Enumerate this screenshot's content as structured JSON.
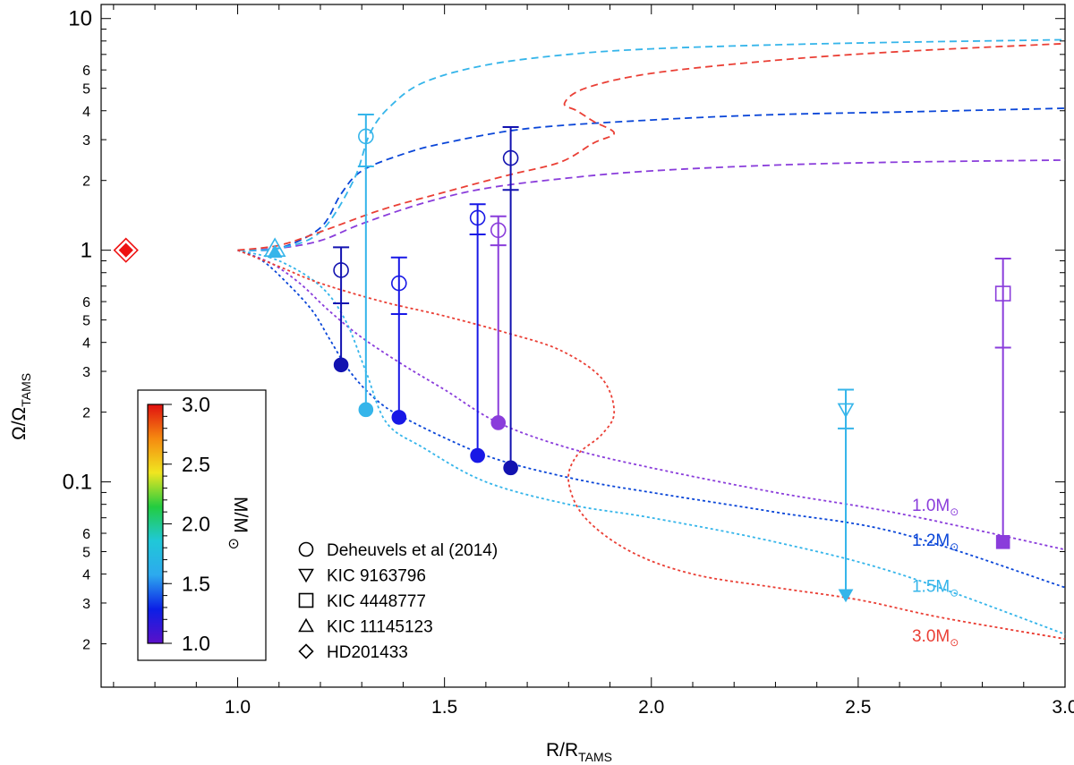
{
  "chart_data": {
    "type": "scatter",
    "xlabel": "R/R",
    "xlabel_sub": "TAMS",
    "ylabel": "Ω/Ω",
    "ylabel_sub": "TAMS",
    "xlim": [
      0.67,
      3.0
    ],
    "ylim": [
      0.013,
      11.5
    ],
    "yscale": "log",
    "x_ticks": [
      1.0,
      1.5,
      2.0,
      2.5,
      3.0
    ],
    "x_tick_labels": [
      "1.0",
      "1.5",
      "2.0",
      "2.5",
      "3.0"
    ],
    "y_labeled_ticks": [
      {
        "value": 10,
        "label": "10",
        "major": true
      },
      {
        "value": 6,
        "label": "6",
        "major": false
      },
      {
        "value": 5,
        "label": "5",
        "major": false
      },
      {
        "value": 4,
        "label": "4",
        "major": false
      },
      {
        "value": 3,
        "label": "3",
        "major": false
      },
      {
        "value": 2,
        "label": "2",
        "major": false
      },
      {
        "value": 1,
        "label": "1",
        "major": true
      },
      {
        "value": 0.6,
        "label": "6",
        "major": false
      },
      {
        "value": 0.5,
        "label": "5",
        "major": false
      },
      {
        "value": 0.4,
        "label": "4",
        "major": false
      },
      {
        "value": 0.3,
        "label": "3",
        "major": false
      },
      {
        "value": 0.2,
        "label": "2",
        "major": false
      },
      {
        "value": 0.1,
        "label": "0.1",
        "major": true
      },
      {
        "value": 0.06,
        "label": "6",
        "major": false
      },
      {
        "value": 0.05,
        "label": "5",
        "major": false
      },
      {
        "value": 0.04,
        "label": "4",
        "major": false
      },
      {
        "value": 0.03,
        "label": "3",
        "major": false
      },
      {
        "value": 0.02,
        "label": "2",
        "major": false
      }
    ],
    "colors": {
      "m10": "#8a3ddb",
      "m12": "#0a46d8",
      "m15": "#35b5ea",
      "m30": "#ea3f35",
      "obs12": "#1818e6",
      "obs11": "#1212b0",
      "hd": "#ee1111"
    },
    "model_tracks": [
      {
        "name": "1.0M",
        "label": "1.0M",
        "color_key": "m10",
        "kind": "core",
        "label_pos": [
          2.63,
          0.075
        ],
        "points": [
          [
            1.0,
            1.0
          ],
          [
            1.08,
            0.88
          ],
          [
            1.15,
            0.72
          ],
          [
            1.22,
            0.55
          ],
          [
            1.3,
            0.42
          ],
          [
            1.4,
            0.32
          ],
          [
            1.5,
            0.25
          ],
          [
            1.63,
            0.18
          ],
          [
            1.8,
            0.14
          ],
          [
            2.0,
            0.115
          ],
          [
            2.3,
            0.09
          ],
          [
            2.6,
            0.073
          ],
          [
            3.0,
            0.051
          ]
        ]
      },
      {
        "name": "1.0M env",
        "label": "",
        "color_key": "m10",
        "kind": "envelope",
        "points": [
          [
            1.0,
            1.0
          ],
          [
            1.1,
            1.02
          ],
          [
            1.2,
            1.1
          ],
          [
            1.3,
            1.3
          ],
          [
            1.45,
            1.6
          ],
          [
            1.6,
            1.85
          ],
          [
            1.8,
            2.05
          ],
          [
            2.0,
            2.2
          ],
          [
            2.3,
            2.33
          ],
          [
            2.6,
            2.4
          ],
          [
            3.0,
            2.45
          ]
        ]
      },
      {
        "name": "1.2M",
        "label": "1.2M",
        "color_key": "m12",
        "kind": "core",
        "label_pos": [
          2.63,
          0.053
        ],
        "points": [
          [
            1.0,
            1.0
          ],
          [
            1.06,
            0.9
          ],
          [
            1.12,
            0.72
          ],
          [
            1.18,
            0.55
          ],
          [
            1.22,
            0.42
          ],
          [
            1.26,
            0.32
          ],
          [
            1.3,
            0.26
          ],
          [
            1.35,
            0.215
          ],
          [
            1.4,
            0.19
          ],
          [
            1.5,
            0.155
          ],
          [
            1.6,
            0.13
          ],
          [
            1.7,
            0.115
          ],
          [
            1.85,
            0.1
          ],
          [
            2.0,
            0.09
          ],
          [
            2.3,
            0.074
          ],
          [
            2.6,
            0.06
          ],
          [
            3.0,
            0.035
          ]
        ]
      },
      {
        "name": "1.2M env",
        "label": "",
        "color_key": "m12",
        "kind": "envelope",
        "points": [
          [
            1.0,
            1.0
          ],
          [
            1.1,
            1.02
          ],
          [
            1.2,
            1.25
          ],
          [
            1.25,
            1.75
          ],
          [
            1.3,
            2.2
          ],
          [
            1.4,
            2.6
          ],
          [
            1.5,
            2.9
          ],
          [
            1.7,
            3.35
          ],
          [
            2.0,
            3.65
          ],
          [
            2.3,
            3.85
          ],
          [
            2.6,
            3.95
          ],
          [
            3.0,
            4.1
          ]
        ]
      },
      {
        "name": "1.5M",
        "label": "1.5M",
        "color_key": "m15",
        "kind": "core",
        "label_pos": [
          2.63,
          0.0335
        ],
        "points": [
          [
            1.0,
            1.0
          ],
          [
            1.1,
            0.9
          ],
          [
            1.2,
            0.7
          ],
          [
            1.26,
            0.5
          ],
          [
            1.31,
            0.3
          ],
          [
            1.36,
            0.18
          ],
          [
            1.45,
            0.14
          ],
          [
            1.6,
            0.1
          ],
          [
            1.8,
            0.08
          ],
          [
            2.0,
            0.07
          ],
          [
            2.3,
            0.055
          ],
          [
            2.6,
            0.04
          ],
          [
            3.0,
            0.022
          ]
        ]
      },
      {
        "name": "1.5M env",
        "label": "",
        "color_key": "m15",
        "kind": "envelope",
        "points": [
          [
            1.0,
            1.0
          ],
          [
            1.1,
            1.02
          ],
          [
            1.2,
            1.2
          ],
          [
            1.28,
            2.0
          ],
          [
            1.32,
            3.2
          ],
          [
            1.37,
            4.2
          ],
          [
            1.45,
            5.3
          ],
          [
            1.6,
            6.3
          ],
          [
            1.8,
            7.0
          ],
          [
            2.0,
            7.4
          ],
          [
            2.3,
            7.7
          ],
          [
            2.6,
            7.9
          ],
          [
            3.0,
            8.1
          ]
        ]
      },
      {
        "name": "3.0M",
        "label": "3.0M",
        "color_key": "m30",
        "kind": "core",
        "label_pos": [
          2.63,
          0.0205
        ],
        "points": [
          [
            1.0,
            1.0
          ],
          [
            1.1,
            0.85
          ],
          [
            1.2,
            0.72
          ],
          [
            1.35,
            0.6
          ],
          [
            1.5,
            0.52
          ],
          [
            1.65,
            0.44
          ],
          [
            1.78,
            0.37
          ],
          [
            1.88,
            0.28
          ],
          [
            1.91,
            0.2
          ],
          [
            1.88,
            0.16
          ],
          [
            1.82,
            0.13
          ],
          [
            1.8,
            0.1
          ],
          [
            1.84,
            0.07
          ],
          [
            1.95,
            0.05
          ],
          [
            2.1,
            0.04
          ],
          [
            2.3,
            0.035
          ],
          [
            2.5,
            0.031
          ],
          [
            2.7,
            0.026
          ],
          [
            3.0,
            0.021
          ]
        ]
      },
      {
        "name": "3.0M env",
        "label": "",
        "color_key": "m30",
        "kind": "envelope",
        "points": [
          [
            1.0,
            1.0
          ],
          [
            1.1,
            1.05
          ],
          [
            1.2,
            1.2
          ],
          [
            1.35,
            1.5
          ],
          [
            1.5,
            1.78
          ],
          [
            1.65,
            2.1
          ],
          [
            1.78,
            2.4
          ],
          [
            1.86,
            2.9
          ],
          [
            1.91,
            3.2
          ],
          [
            1.86,
            3.6
          ],
          [
            1.82,
            4.0
          ],
          [
            1.79,
            4.3
          ],
          [
            1.84,
            5.0
          ],
          [
            2.0,
            5.8
          ],
          [
            2.3,
            6.6
          ],
          [
            2.6,
            7.2
          ],
          [
            3.0,
            7.8
          ]
        ]
      }
    ],
    "observations": [
      {
        "name": "deheuvels-1",
        "x": 1.25,
        "marker": "circle",
        "color_key": "obs11",
        "env": 0.82,
        "env_err": [
          0.59,
          1.03
        ],
        "core": 0.32,
        "bar_from": 0.32,
        "bar_to": 1.03
      },
      {
        "name": "deheuvels-2",
        "x": 1.31,
        "marker": "circle",
        "color_key": "m15",
        "env": 3.1,
        "env_err": [
          2.3,
          3.85
        ],
        "core": 0.205,
        "bar_from": 0.205,
        "bar_to": 3.85
      },
      {
        "name": "deheuvels-3",
        "x": 1.39,
        "marker": "circle",
        "color_key": "obs12",
        "env": 0.72,
        "env_err": [
          0.53,
          0.93
        ],
        "core": 0.19,
        "bar_from": 0.19,
        "bar_to": 0.93
      },
      {
        "name": "deheuvels-4",
        "x": 1.58,
        "marker": "circle",
        "color_key": "obs12",
        "env": 1.38,
        "env_err": [
          1.17,
          1.58
        ],
        "core": 0.13,
        "bar_from": 0.13,
        "bar_to": 1.58
      },
      {
        "name": "deheuvels-5",
        "x": 1.63,
        "marker": "circle",
        "color_key": "m10",
        "env": 1.22,
        "env_err": [
          1.05,
          1.4
        ],
        "core": 0.18,
        "bar_from": 0.18,
        "bar_to": 1.4
      },
      {
        "name": "deheuvels-6",
        "x": 1.66,
        "marker": "circle",
        "color_key": "obs11",
        "env": 2.5,
        "env_err": [
          1.82,
          3.4
        ],
        "core": 0.115,
        "bar_from": 0.115,
        "bar_to": 3.4
      },
      {
        "name": "kic-9163796",
        "x": 2.47,
        "marker": "triangle-down",
        "color_key": "m15",
        "env": 0.205,
        "env_err": [
          0.17,
          0.25
        ],
        "core": 0.0325,
        "bar_from": 0.0325,
        "bar_to": 0.25
      },
      {
        "name": "kic-4448777",
        "x": 2.85,
        "marker": "square",
        "color_key": "m10",
        "env": 0.65,
        "env_err": [
          0.38,
          0.92
        ],
        "core": 0.055,
        "bar_from": 0.055,
        "bar_to": 0.92
      },
      {
        "name": "kic-11145123",
        "x": 1.09,
        "marker": "triangle-up",
        "color_key": "m15",
        "env": 1.02,
        "env_err": null,
        "core": 1.0,
        "bar_from": null,
        "bar_to": null
      },
      {
        "name": "hd201433",
        "x": 0.73,
        "marker": "diamond",
        "color_key": "hd",
        "env": 1.0,
        "env_err": null,
        "core": 1.0,
        "bar_from": null,
        "bar_to": null
      }
    ],
    "legend": [
      {
        "marker": "circle",
        "label": "Deheuvels et al (2014)"
      },
      {
        "marker": "triangle-down",
        "label": "KIC 9163796"
      },
      {
        "marker": "square",
        "label": "KIC 4448777"
      },
      {
        "marker": "triangle-up",
        "label": "KIC 11145123"
      },
      {
        "marker": "diamond",
        "label": "HD201433"
      }
    ],
    "colorbar": {
      "label": "M/M",
      "range": [
        1.0,
        3.0
      ],
      "ticks": [
        "3.0",
        "2.5",
        "2.0",
        "1.5",
        "1.0"
      ],
      "tick_values": [
        3.0,
        2.5,
        2.0,
        1.5,
        1.0
      ],
      "stops": [
        "#5b10c8",
        "#0b1fe6",
        "#2da9ee",
        "#20c8d8",
        "#22cc40",
        "#f0e620",
        "#f58a10",
        "#e01010"
      ]
    },
    "sun_symbol": "⊙"
  }
}
